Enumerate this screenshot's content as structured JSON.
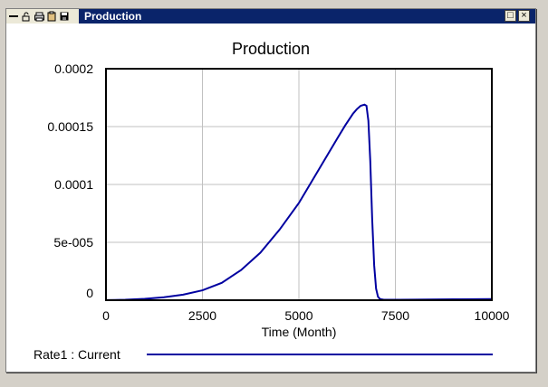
{
  "window": {
    "title": "Production",
    "toolbar_icons": [
      "minimize-bar-icon",
      "lock-icon",
      "print-icon",
      "copy-icon",
      "save-icon"
    ],
    "buttons": {
      "restore": "□",
      "close": "×"
    }
  },
  "chart_data": {
    "type": "line",
    "title": "Production",
    "xlabel": "Time (Month)",
    "ylabel": "",
    "xlim": [
      0,
      10000
    ],
    "ylim": [
      0,
      0.0002
    ],
    "xticks": [
      0,
      2500,
      5000,
      7500,
      10000
    ],
    "xtick_labels": [
      "0",
      "2500",
      "5000",
      "7500",
      "10000"
    ],
    "yticks": [
      0,
      5e-05,
      0.0001,
      0.00015,
      0.0002
    ],
    "ytick_labels": [
      "0",
      "5e-005",
      "0.0001",
      "0.00015",
      "0.0002"
    ],
    "grid": true,
    "legend_position": "bottom",
    "series": [
      {
        "name": "Rate1 : Current",
        "color": "#0000a0",
        "x": [
          0,
          500,
          1000,
          1500,
          2000,
          2500,
          3000,
          3500,
          4000,
          4500,
          5000,
          5500,
          6000,
          6200,
          6400,
          6500,
          6600,
          6700,
          6750,
          6800,
          6850,
          6900,
          6950,
          7000,
          7050,
          7100,
          7200,
          7400,
          7600,
          8000,
          9000,
          10000
        ],
        "y": [
          1e-07,
          4e-07,
          1.2e-06,
          2.6e-06,
          4.8e-06,
          8.5e-06,
          1.5e-05,
          2.6e-05,
          4.1e-05,
          6.1e-05,
          8.4e-05,
          0.000112,
          0.00014,
          0.000151,
          0.000161,
          0.000165,
          0.000168,
          0.000169,
          0.000168,
          0.000155,
          0.00012,
          7e-05,
          3e-05,
          1e-05,
          3e-06,
          1e-06,
          4e-07,
          4e-07,
          4e-07,
          5e-07,
          8e-07,
          1e-06
        ]
      }
    ]
  },
  "legend": {
    "label": "Rate1 : Current"
  }
}
